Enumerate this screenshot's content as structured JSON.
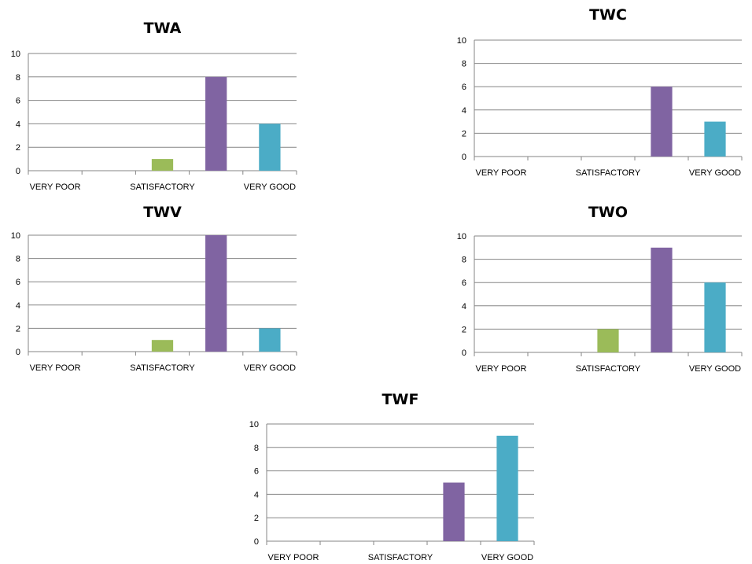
{
  "colors": {
    "category_1": "#9BBB59",
    "category_2": "#8064A2",
    "category_3": "#4BACC6",
    "grid": "#868686"
  },
  "chart_data": [
    {
      "type": "bar",
      "title": "TWA",
      "tick_labels": [
        "VERY POOR",
        "SATISFACTORY",
        "VERY GOOD"
      ],
      "values": [
        0,
        0,
        1,
        8,
        4
      ],
      "ylim": [
        0,
        10
      ],
      "yticks": [
        0,
        2,
        4,
        6,
        8,
        10
      ],
      "grid": true,
      "legend": "none"
    },
    {
      "type": "bar",
      "title": "TWC",
      "tick_labels": [
        "VERY POOR",
        "SATISFACTORY",
        "VERY GOOD"
      ],
      "values": [
        0,
        0,
        0,
        6,
        3
      ],
      "ylim": [
        0,
        10
      ],
      "yticks": [
        0,
        2,
        4,
        6,
        8,
        10
      ],
      "grid": true,
      "legend": "none"
    },
    {
      "type": "bar",
      "title": "TWV",
      "tick_labels": [
        "VERY POOR",
        "SATISFACTORY",
        "VERY GOOD"
      ],
      "values": [
        0,
        0,
        1,
        10,
        2
      ],
      "ylim": [
        0,
        10
      ],
      "yticks": [
        0,
        2,
        4,
        6,
        8,
        10
      ],
      "grid": true,
      "legend": "none"
    },
    {
      "type": "bar",
      "title": "TWO",
      "tick_labels": [
        "VERY POOR",
        "SATISFACTORY",
        "VERY GOOD"
      ],
      "values": [
        0,
        0,
        2,
        9,
        6
      ],
      "ylim": [
        0,
        10
      ],
      "yticks": [
        0,
        2,
        4,
        6,
        8,
        10
      ],
      "grid": true,
      "legend": "none"
    },
    {
      "type": "bar",
      "title": "TWF",
      "tick_labels": [
        "VERY POOR",
        "SATISFACTORY",
        "VERY GOOD"
      ],
      "values": [
        0,
        0,
        0,
        5,
        9
      ],
      "ylim": [
        0,
        10
      ],
      "yticks": [
        0,
        2,
        4,
        6,
        8,
        10
      ],
      "grid": true,
      "legend": "none"
    }
  ]
}
